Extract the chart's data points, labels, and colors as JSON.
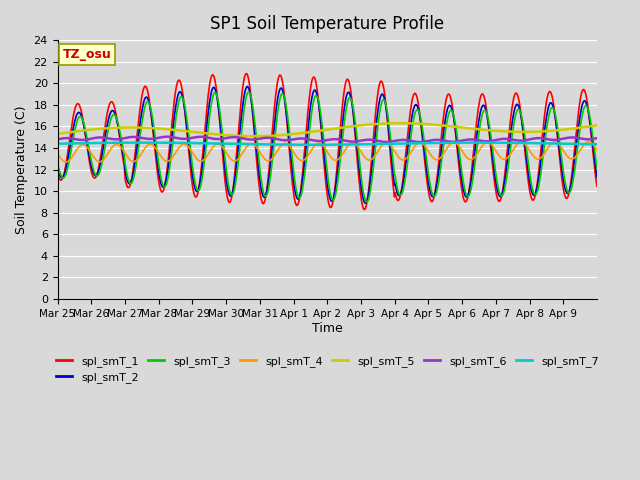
{
  "title": "SP1 Soil Temperature Profile",
  "xlabel": "Time",
  "ylabel": "Soil Temperature (C)",
  "ylim": [
    0,
    24
  ],
  "yticks": [
    0,
    2,
    4,
    6,
    8,
    10,
    12,
    14,
    16,
    18,
    20,
    22,
    24
  ],
  "tz_label": "TZ_osu",
  "x_tick_labels": [
    "Mar 25",
    "Mar 26",
    "Mar 27",
    "Mar 28",
    "Mar 29",
    "Mar 30",
    "Mar 31",
    "Apr 1",
    "Apr 2",
    "Apr 3",
    "Apr 4",
    "Apr 5",
    "Apr 6",
    "Apr 7",
    "Apr 8",
    "Apr 9"
  ],
  "series_colors": {
    "spl_smT_1": "#ff0000",
    "spl_smT_2": "#0000cc",
    "spl_smT_3": "#00cc00",
    "spl_smT_4": "#ff9900",
    "spl_smT_5": "#cccc00",
    "spl_smT_6": "#9933cc",
    "spl_smT_7": "#00cccc"
  },
  "legend_order": [
    "spl_smT_1",
    "spl_smT_2",
    "spl_smT_3",
    "spl_smT_4",
    "spl_smT_5",
    "spl_smT_6",
    "spl_smT_7"
  ],
  "background_color": "#d9d9d9",
  "plot_bg_color": "#d9d9d9"
}
